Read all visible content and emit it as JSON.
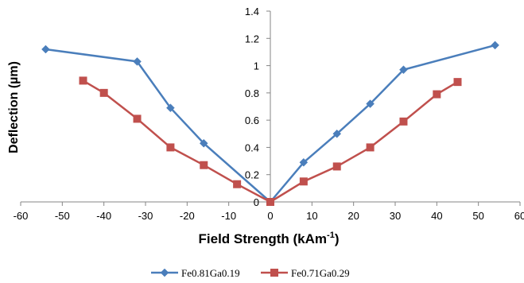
{
  "chart_data": {
    "type": "line",
    "title": "",
    "xlabel": "Field Strength  (kAm",
    "xlabel_sup": "-1",
    "xlabel_close": ")",
    "ylabel": "Deflection (µm)",
    "xlim": [
      -60,
      60
    ],
    "ylim": [
      0,
      1.4
    ],
    "x_ticks": [
      -60,
      -50,
      -40,
      -30,
      -20,
      -10,
      0,
      10,
      20,
      30,
      40,
      50,
      60
    ],
    "y_ticks": [
      0,
      0.2,
      0.4,
      0.6,
      0.8,
      1,
      1.2,
      1.4
    ],
    "x_tick_labels": [
      "-60",
      "-50",
      "-40",
      "-30",
      "-20",
      "-10",
      "0",
      "10",
      "20",
      "30",
      "40",
      "50",
      "60"
    ],
    "y_tick_labels": [
      "0",
      "0.2",
      "0.4",
      "0.6",
      "0.8",
      "1",
      "1.2",
      "1.4"
    ],
    "grid": false,
    "legend_position": "bottom",
    "series": [
      {
        "name": "Fe0.81Ga0.19",
        "color": "#4a7ebb",
        "marker": "diamond",
        "x": [
          -54,
          -32,
          -24,
          -16,
          0,
          8,
          16,
          24,
          32,
          54
        ],
        "y": [
          1.12,
          1.03,
          0.69,
          0.43,
          0.0,
          0.29,
          0.5,
          0.72,
          0.97,
          1.15
        ]
      },
      {
        "name": "Fe0.71Ga0.29",
        "color": "#c0504d",
        "marker": "square",
        "x": [
          -45,
          -40,
          -32,
          -24,
          -16,
          -8,
          0,
          8,
          16,
          24,
          32,
          40,
          45
        ],
        "y": [
          0.89,
          0.8,
          0.61,
          0.4,
          0.27,
          0.13,
          0.0,
          0.15,
          0.26,
          0.4,
          0.59,
          0.79,
          0.88
        ]
      }
    ]
  }
}
